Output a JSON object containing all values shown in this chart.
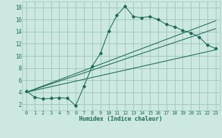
{
  "xlabel": "Humidex (Indice chaleur)",
  "bg_color": "#cce8e0",
  "grid_color": "#a0c8c0",
  "line_color": "#1a6b5a",
  "xlim": [
    -0.5,
    23.5
  ],
  "ylim": [
    1,
    19
  ],
  "xticks": [
    0,
    1,
    2,
    3,
    4,
    5,
    6,
    7,
    8,
    9,
    10,
    11,
    12,
    13,
    14,
    15,
    16,
    17,
    18,
    19,
    20,
    21,
    22,
    23
  ],
  "yticks": [
    2,
    4,
    6,
    8,
    10,
    12,
    14,
    16,
    18
  ],
  "curve_x": [
    0,
    1,
    2,
    3,
    4,
    5,
    6,
    7,
    8,
    9,
    10,
    11,
    12,
    13,
    14,
    15,
    16,
    17,
    18,
    19,
    20,
    21,
    22,
    23
  ],
  "curve_y": [
    4.2,
    3.2,
    2.9,
    3.0,
    3.1,
    3.0,
    1.8,
    5.0,
    8.3,
    10.4,
    14.1,
    16.7,
    18.2,
    16.5,
    16.3,
    16.5,
    16.0,
    15.2,
    14.8,
    14.2,
    13.8,
    13.1,
    11.8,
    11.2
  ],
  "line1_x": [
    0,
    23
  ],
  "line1_y": [
    4.0,
    11.0
  ],
  "line2_x": [
    0,
    23
  ],
  "line2_y": [
    4.0,
    14.5
  ],
  "line3_x": [
    0,
    23
  ],
  "line3_y": [
    4.0,
    15.8
  ],
  "tick_fontsize": 5,
  "xlabel_fontsize": 6
}
